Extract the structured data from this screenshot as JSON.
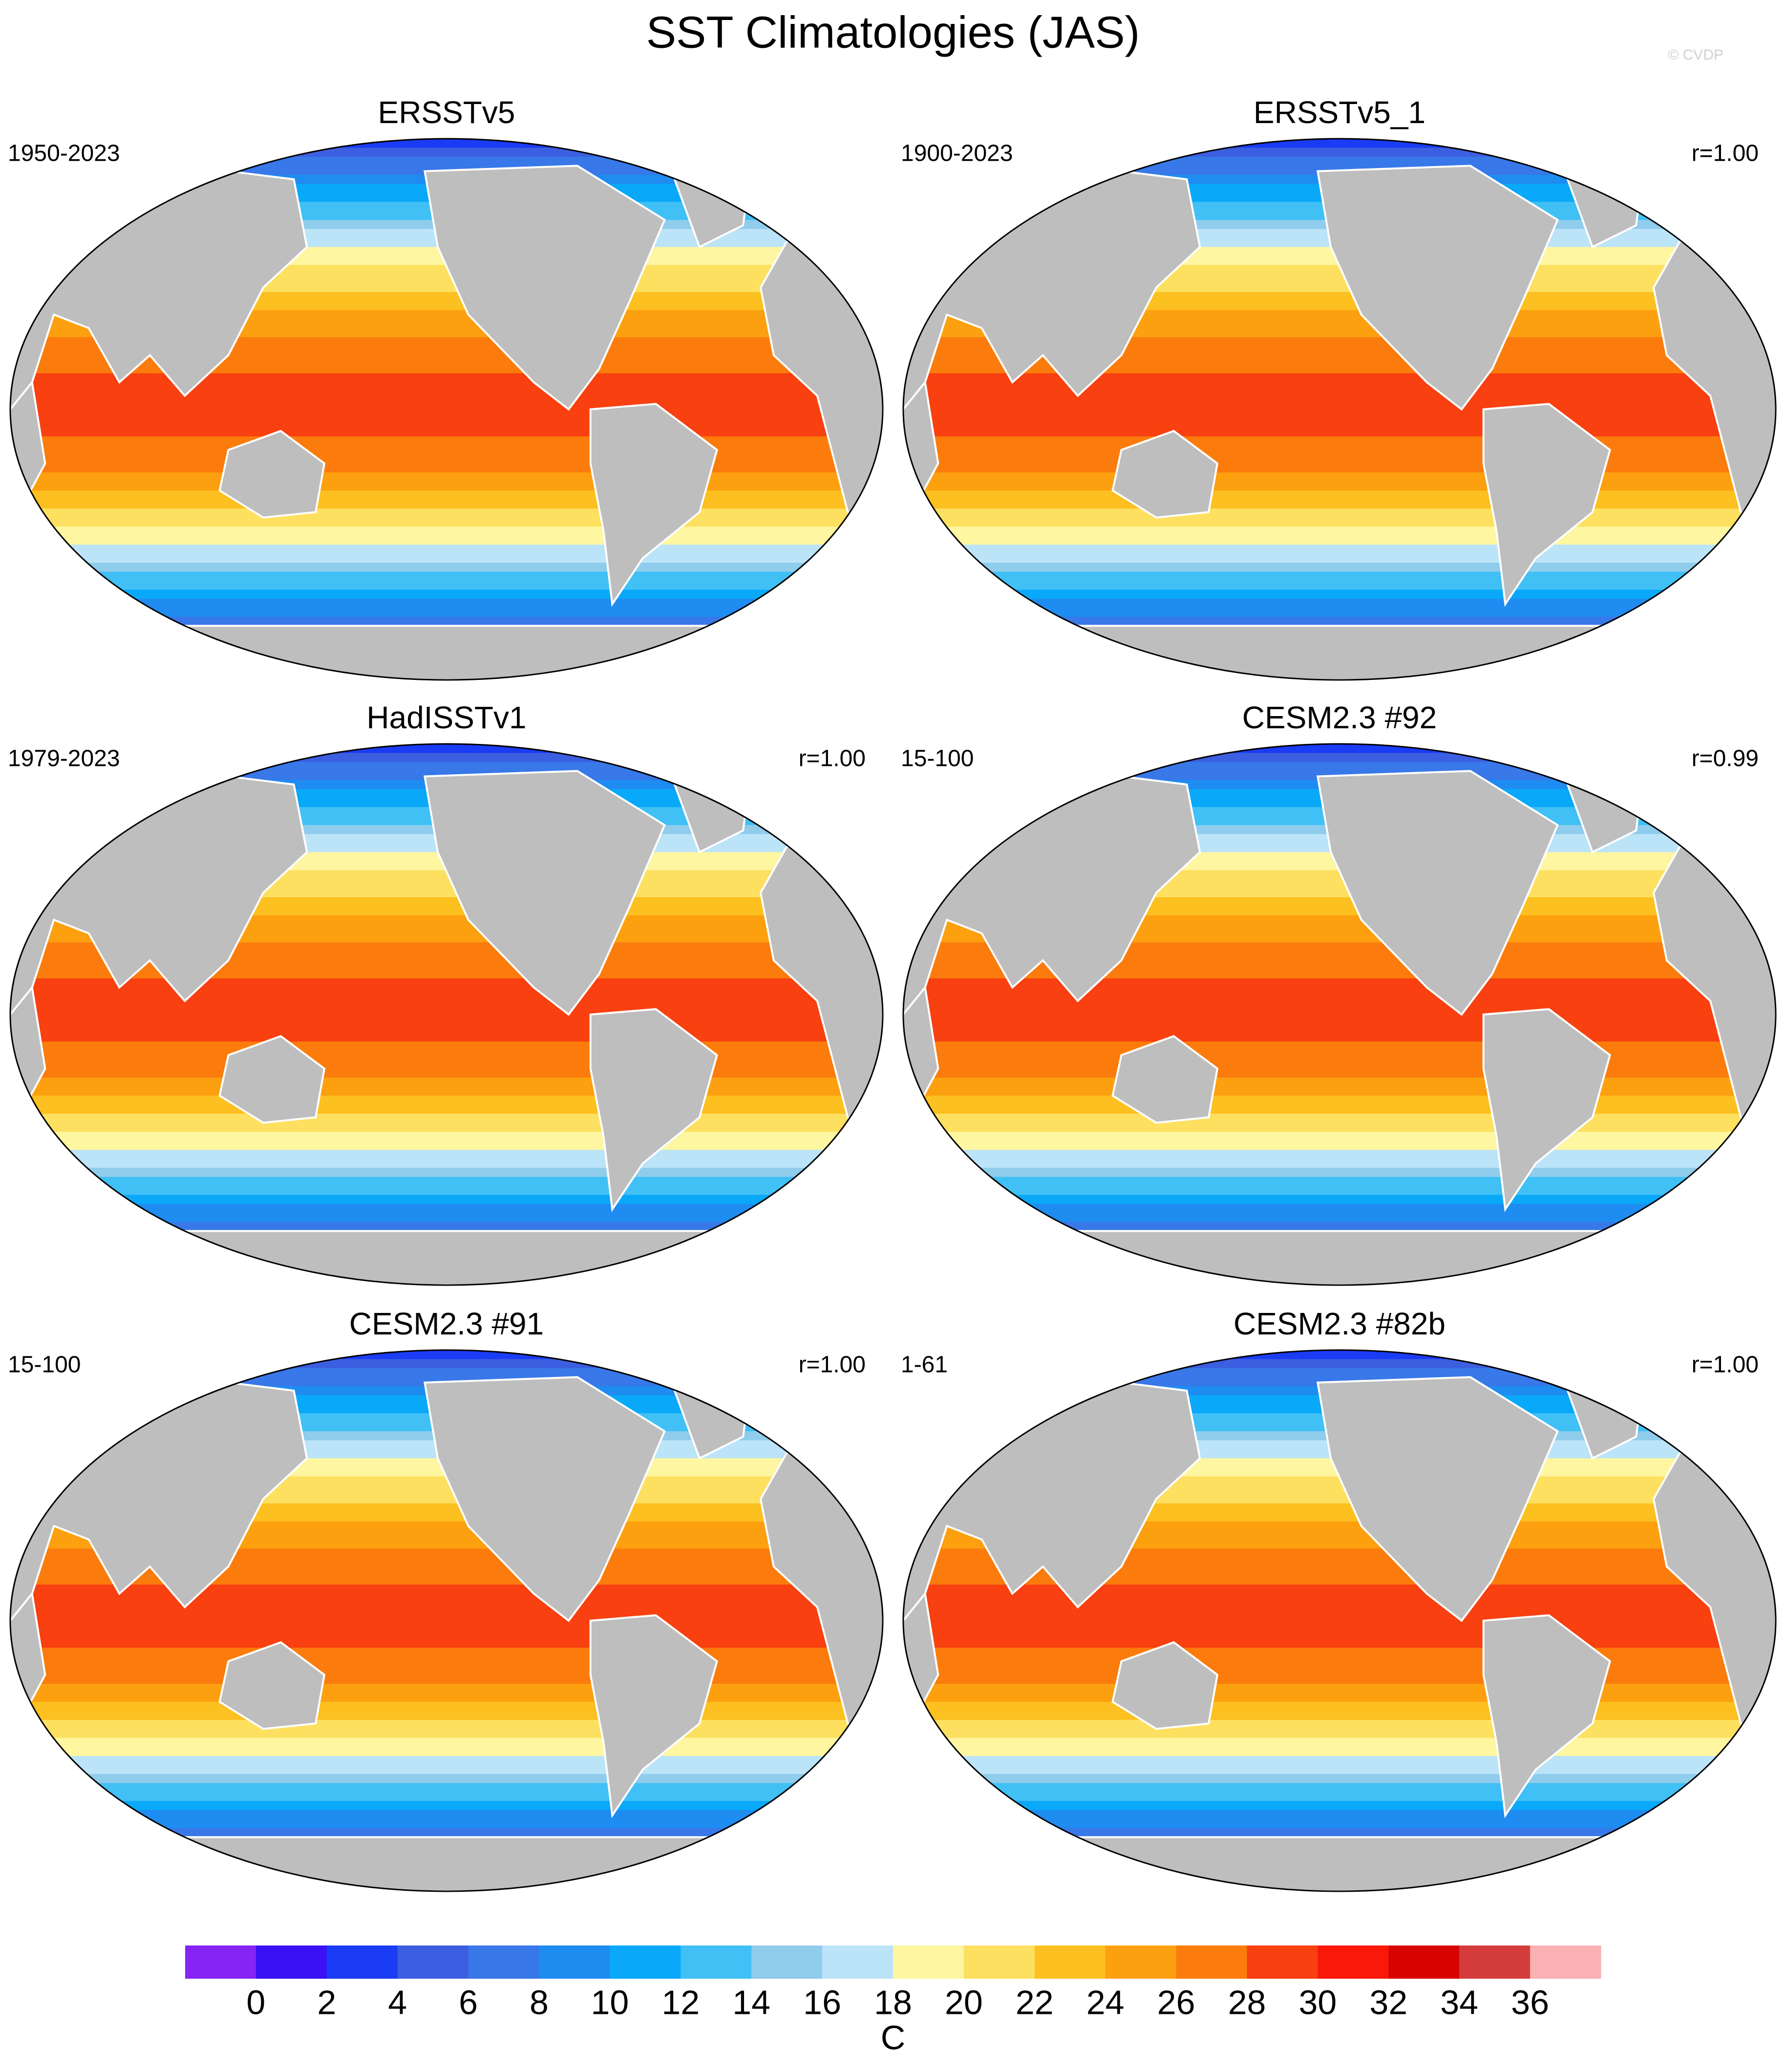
{
  "title": "SST Climatologies (JAS)",
  "copyright": "© CVDP",
  "panels": [
    {
      "title": "ERSSTv5",
      "period": "1950-2023",
      "corr": null
    },
    {
      "title": "ERSSTv5_1",
      "period": "1900-2023",
      "corr": "r=1.00"
    },
    {
      "title": "HadISSTv1",
      "period": "1979-2023",
      "corr": "r=1.00"
    },
    {
      "title": "CESM2.3 #92",
      "period": "15-100",
      "corr": "r=0.99"
    },
    {
      "title": "CESM2.3 #91",
      "period": "15-100",
      "corr": "r=1.00"
    },
    {
      "title": "CESM2.3 #82b",
      "period": "1-61",
      "corr": "r=1.00"
    }
  ],
  "colorbar": {
    "ticks": [
      0,
      2,
      4,
      6,
      8,
      10,
      12,
      14,
      16,
      18,
      20,
      22,
      24,
      26,
      28,
      30,
      32,
      34,
      36
    ],
    "colors": [
      "#8624f5",
      "#3a10f5",
      "#1a3cf5",
      "#3c5ee0",
      "#3878e8",
      "#1e8cf0",
      "#0aa8f8",
      "#40c0f5",
      "#90ccec",
      "#bce4f8",
      "#fef6a0",
      "#fde060",
      "#fcc020",
      "#fca010",
      "#fb7c0c",
      "#f84010",
      "#fa1808",
      "#d80404",
      "#d43c3c",
      "#fbb0b4"
    ],
    "label": "C"
  }
}
